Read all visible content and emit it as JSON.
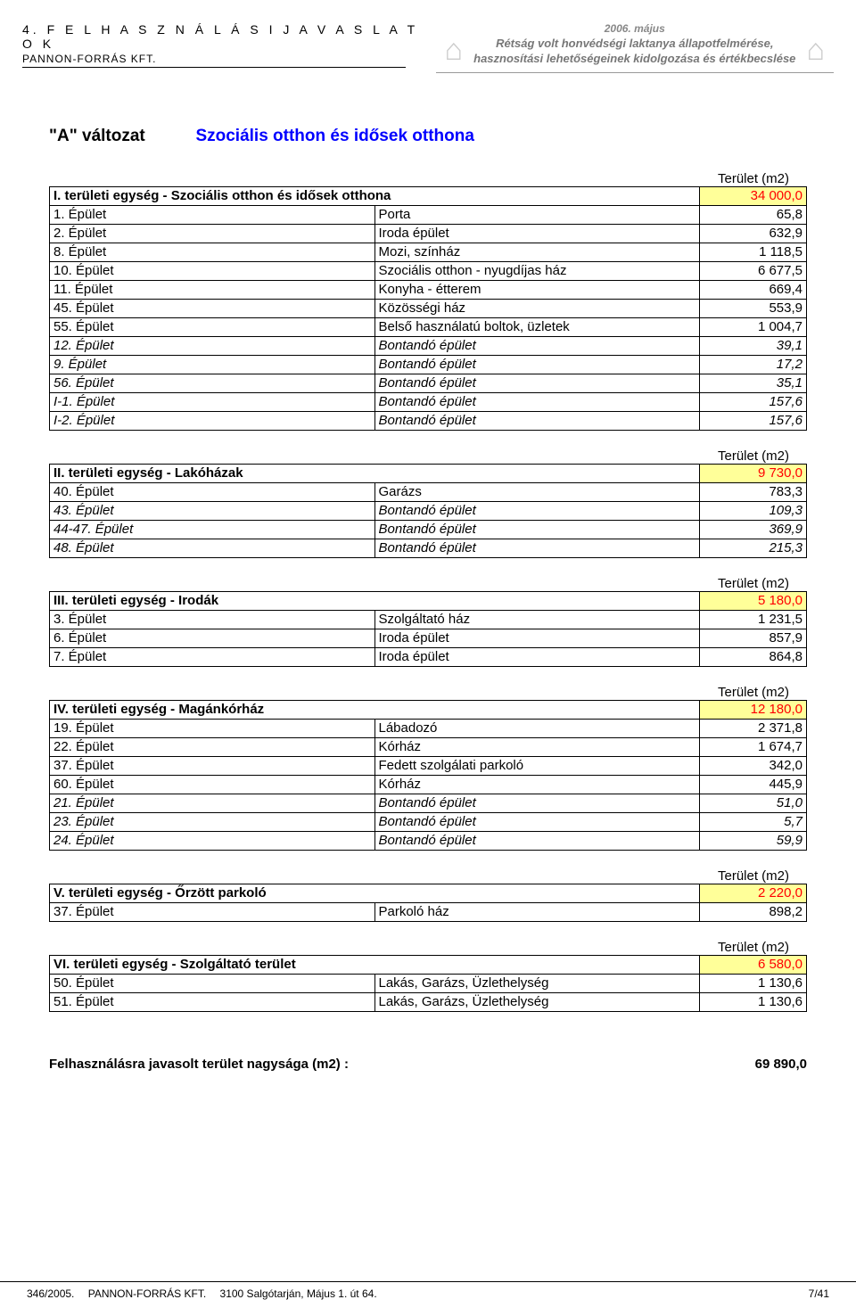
{
  "header": {
    "chapter": "4. F E L H A S Z N Á L Á S I  J A V A S L A T O K",
    "company": "PANNON-FORRÁS KFT.",
    "date": "2006. május",
    "desc1": "Rétság volt honvédségi laktanya állapotfelmérése,",
    "desc2": "hasznosítási lehetőségeinek kidolgozása és értékbecslése"
  },
  "title": {
    "variant": "\"A\" változat",
    "name": "Szociális otthon és idősek otthona"
  },
  "area_label": "Terület (m2)",
  "sections": [
    {
      "title": "I. területi egység - Szociális otthon és idősek otthona",
      "total": "34 000,0",
      "rows": [
        {
          "id": "1. Épület",
          "desc": "Porta",
          "val": "65,8",
          "italic": false
        },
        {
          "id": "2. Épület",
          "desc": "Iroda épület",
          "val": "632,9",
          "italic": false
        },
        {
          "id": "8. Épület",
          "desc": "Mozi, színház",
          "val": "1 118,5",
          "italic": false
        },
        {
          "id": "10. Épület",
          "desc": "Szociális otthon - nyugdíjas ház",
          "val": "6 677,5",
          "italic": false
        },
        {
          "id": "11. Épület",
          "desc": "Konyha - étterem",
          "val": "669,4",
          "italic": false
        },
        {
          "id": "45. Épület",
          "desc": "Közösségi ház",
          "val": "553,9",
          "italic": false
        },
        {
          "id": "55. Épület",
          "desc": "Belső használatú boltok, üzletek",
          "val": "1 004,7",
          "italic": false
        },
        {
          "id": "12. Épület",
          "desc": "Bontandó épület",
          "val": "39,1",
          "italic": true
        },
        {
          "id": "9. Épület",
          "desc": "Bontandó épület",
          "val": "17,2",
          "italic": true
        },
        {
          "id": "56. Épület",
          "desc": "Bontandó épület",
          "val": "35,1",
          "italic": true
        },
        {
          "id": "I-1. Épület",
          "desc": "Bontandó épület",
          "val": "157,6",
          "italic": true
        },
        {
          "id": "I-2. Épület",
          "desc": "Bontandó épület",
          "val": "157,6",
          "italic": true
        }
      ]
    },
    {
      "title": "II. területi egység - Lakóházak",
      "total": "9 730,0",
      "rows": [
        {
          "id": "40. Épület",
          "desc": "Garázs",
          "val": "783,3",
          "italic": false
        },
        {
          "id": "43. Épület",
          "desc": "Bontandó épület",
          "val": "109,3",
          "italic": true
        },
        {
          "id": "44-47. Épület",
          "desc": "Bontandó épület",
          "val": "369,9",
          "italic": true
        },
        {
          "id": "48. Épület",
          "desc": "Bontandó épület",
          "val": "215,3",
          "italic": true
        }
      ]
    },
    {
      "title": "III. területi egység - Irodák",
      "total": "5 180,0",
      "rows": [
        {
          "id": "3. Épület",
          "desc": "Szolgáltató ház",
          "val": "1 231,5",
          "italic": false
        },
        {
          "id": "6. Épület",
          "desc": "Iroda épület",
          "val": "857,9",
          "italic": false
        },
        {
          "id": "7. Épület",
          "desc": "Iroda épület",
          "val": "864,8",
          "italic": false
        }
      ]
    },
    {
      "title": "IV. területi egység - Magánkórház",
      "total": "12 180,0",
      "rows": [
        {
          "id": "19. Épület",
          "desc": "Lábadozó",
          "val": "2 371,8",
          "italic": false
        },
        {
          "id": "22. Épület",
          "desc": "Kórház",
          "val": "1 674,7",
          "italic": false
        },
        {
          "id": "37. Épület",
          "desc": "Fedett szolgálati parkoló",
          "val": "342,0",
          "italic": false
        },
        {
          "id": "60. Épület",
          "desc": "Kórház",
          "val": "445,9",
          "italic": false
        },
        {
          "id": "21. Épület",
          "desc": "Bontandó épület",
          "val": "51,0",
          "italic": true
        },
        {
          "id": "23. Épület",
          "desc": "Bontandó épület",
          "val": "5,7",
          "italic": true
        },
        {
          "id": "24. Épület",
          "desc": "Bontandó épület",
          "val": "59,9",
          "italic": true
        }
      ]
    },
    {
      "title": "V. területi egység - Őrzött parkoló",
      "total": "2 220,0",
      "rows": [
        {
          "id": "37. Épület",
          "desc": "Parkoló ház",
          "val": "898,2",
          "italic": false
        }
      ]
    },
    {
      "title": "VI. területi egység - Szolgáltató terület",
      "total": "6 580,0",
      "rows": [
        {
          "id": "50. Épület",
          "desc": "Lakás, Garázs, Üzlethelység",
          "val": "1 130,6",
          "italic": false
        },
        {
          "id": "51. Épület",
          "desc": "Lakás, Garázs, Üzlethelység",
          "val": "1 130,6",
          "italic": false
        }
      ]
    }
  ],
  "total": {
    "label": "Felhasználásra javasolt terület nagysága (m2) :",
    "value": "69 890,0"
  },
  "footer": {
    "ref": "346/2005.",
    "company": "PANNON-FORRÁS KFT.",
    "address": "3100 Salgótarján, Május 1. út 64.",
    "page": "7/41"
  },
  "colors": {
    "highlight": "#ffff99",
    "red": "#ff0000",
    "blue": "#0000ff"
  }
}
